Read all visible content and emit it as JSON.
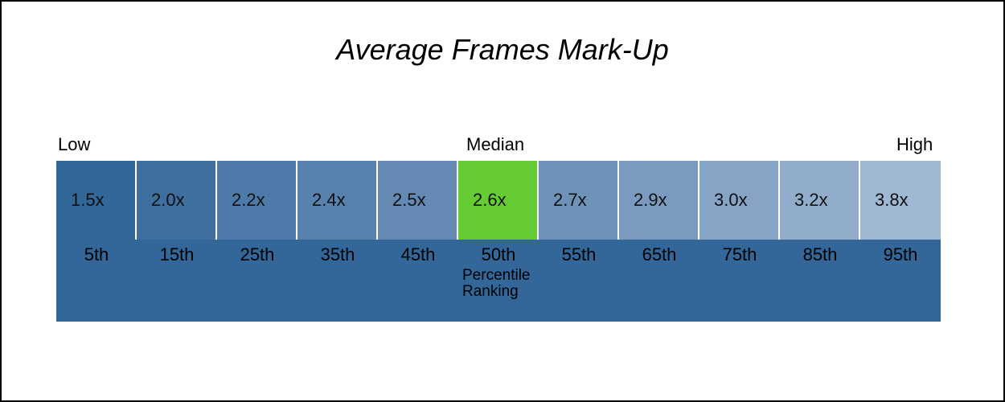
{
  "chart_data": {
    "type": "table",
    "title": "Average Frames Mark-Up",
    "scale_labels": {
      "low": "Low",
      "median": "Median",
      "high": "High"
    },
    "percentiles": [
      "5th",
      "15th",
      "25th",
      "35th",
      "45th",
      "50th",
      "55th",
      "65th",
      "75th",
      "85th",
      "95th"
    ],
    "value_labels": [
      "1.5x",
      "2.0x",
      "2.2x",
      "2.4x",
      "2.5x",
      "2.6x",
      "2.7x",
      "2.9x",
      "3.0x",
      "3.2x",
      "3.8x"
    ],
    "values": [
      1.5,
      2.0,
      2.2,
      2.4,
      2.5,
      2.6,
      2.7,
      2.9,
      3.0,
      3.2,
      3.8
    ],
    "highlight_index": 5,
    "ranking_label_line1": "Percentile",
    "ranking_label_line2": "Ranking",
    "colors": {
      "band": "#336699",
      "highlight": "#66CC33",
      "cells": [
        "#336699",
        "#3E6F9F",
        "#4D7AA8",
        "#5882AE",
        "#6489B3",
        "#66CC33",
        "#6F92B8",
        "#7A9ABF",
        "#86A4C6",
        "#91ADCB",
        "#A0B8D3"
      ]
    }
  }
}
